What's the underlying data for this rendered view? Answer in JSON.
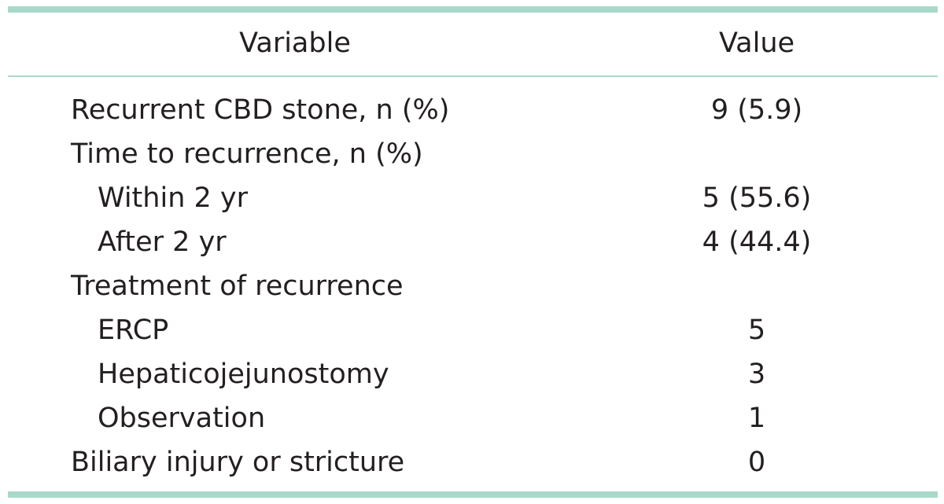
{
  "table": {
    "header": [
      "Variable",
      "Value"
    ],
    "rows": [
      [
        "Recurrent CBD stone, n (%)",
        "9 (5.9)"
      ],
      [
        "Time to recurrence, n (%)"
      ],
      [
        "Within 2 yr",
        "5 (55.6)"
      ],
      [
        "After 2 yr",
        "4 (44.4)"
      ],
      [
        "Treatment of recurrence"
      ],
      [
        "ERCP",
        "5"
      ],
      [
        "Hepaticojejunostomy",
        "3"
      ],
      [
        "Observation",
        "1"
      ],
      [
        "Biliary injury or stricture",
        "0"
      ]
    ]
  }
}
